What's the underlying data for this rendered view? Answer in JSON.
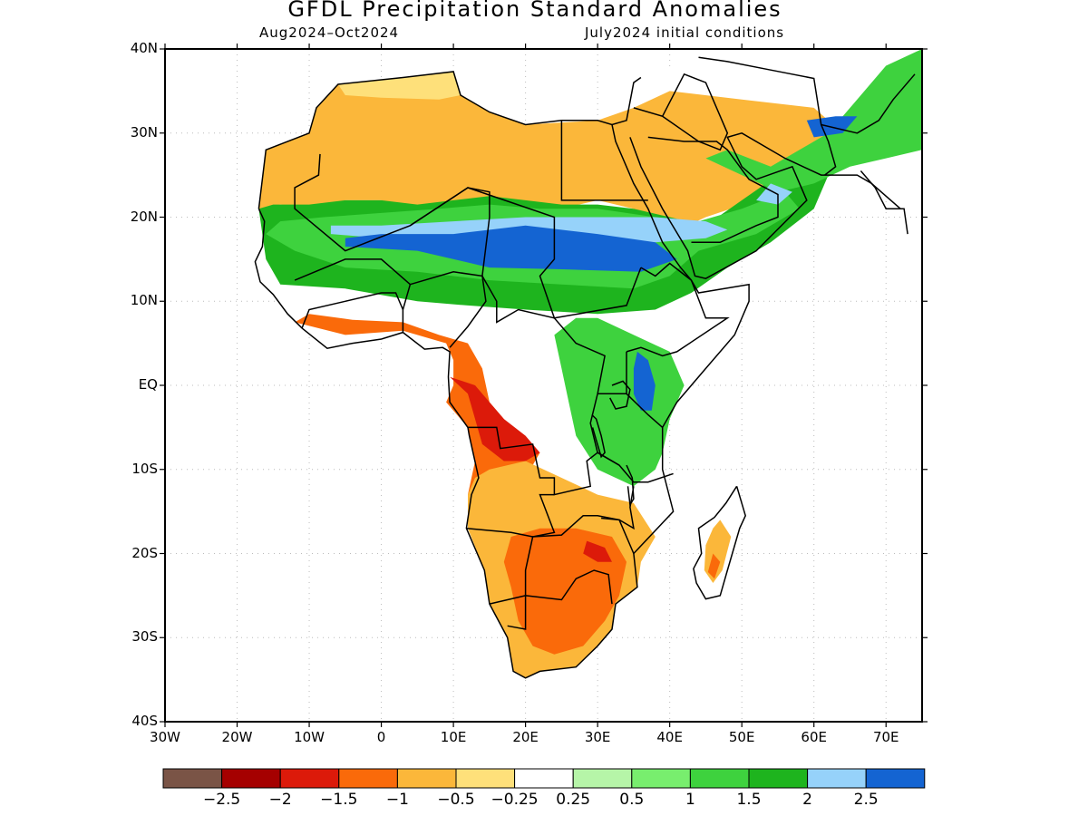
{
  "title": "GFDL Precipitation Standard Anomalies",
  "subtitle_left": "Aug2024–Oct2024",
  "subtitle_right": "July2024 initial conditions",
  "map": {
    "lat_labels": [
      "40N",
      "30N",
      "20N",
      "10N",
      "EQ",
      "10S",
      "20S",
      "30S",
      "40S"
    ],
    "lon_labels": [
      "30W",
      "20W",
      "10W",
      "0",
      "10E",
      "20E",
      "30E",
      "40E",
      "50E",
      "60E",
      "70E"
    ],
    "land_color": "#ffffff",
    "border_color": "#000000"
  },
  "colorbar": {
    "labels": [
      "−2.5",
      "−2",
      "−1.5",
      "−1",
      "−0.5",
      "−0.25",
      "0.25",
      "0.5",
      "1",
      "1.5",
      "2",
      "2.5"
    ],
    "colors": [
      "#7a5446",
      "#a50000",
      "#dc1a0a",
      "#fa6a0a",
      "#fbb73a",
      "#fee07a",
      "#ffffff",
      "#b6f5a8",
      "#78ee6e",
      "#3ed23e",
      "#1eb41e",
      "#96d2fa",
      "#1464d2"
    ]
  }
}
